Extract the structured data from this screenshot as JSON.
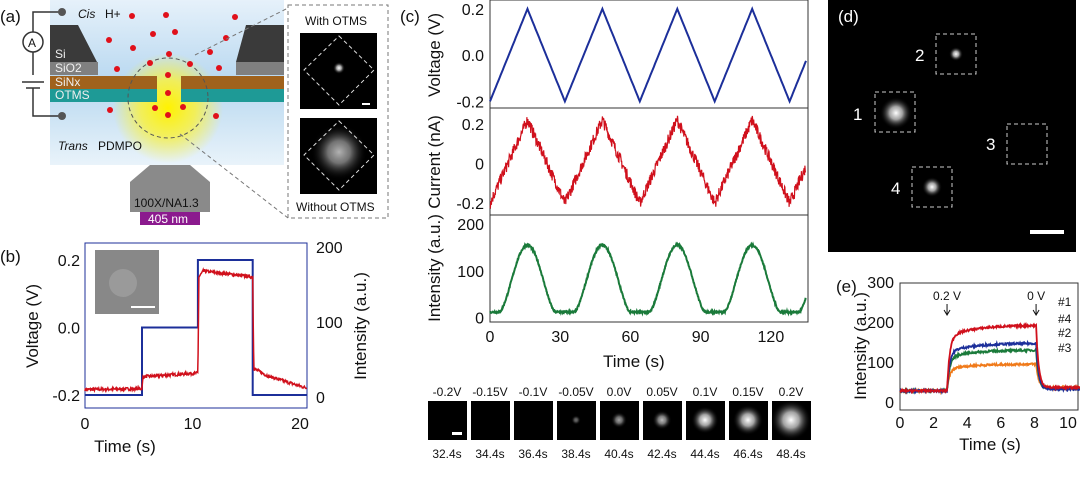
{
  "panels": {
    "a": "(a)",
    "b": "(b)",
    "c": "(c)",
    "d": "(d)",
    "e": "(e)"
  },
  "schematic": {
    "cis": "Cis",
    "hplus": "H+",
    "ammeter": "A",
    "layers": [
      "Si",
      "SiO2",
      "SiNx",
      "OTMS"
    ],
    "trans": "Trans",
    "dye": "PDMPO",
    "objective": "100X/NA1.3",
    "laser": "405 nm",
    "inset_top": "With OTMS",
    "inset_bottom": "Without OTMS",
    "colors": {
      "layer_si": "#3a3a3a",
      "layer_sio2": "#808080",
      "layer_sinx": "#a0621c",
      "layer_otms": "#1e9a96",
      "proton": "#e0101a",
      "laser": "#8b1a8e"
    }
  },
  "chart_data": [
    {
      "id": "b",
      "type": "line",
      "xlabel": "Time (s)",
      "ylabel": "Voltage (V)",
      "y2label": "Intensity (a.u.)",
      "xlim": [
        0,
        20.6
      ],
      "ylim": [
        -0.24,
        0.25
      ],
      "y2lim": [
        -10,
        210
      ],
      "xticks": [
        "0",
        "10",
        "20"
      ],
      "yticks": [
        "-0.2",
        "0.0",
        "0.2"
      ],
      "y2ticks": [
        "0",
        "100",
        "200"
      ],
      "series": [
        {
          "axis": "left",
          "color": "#1c2f9a",
          "step_times": [
            0,
            5.3,
            10.5,
            15.6,
            20.6
          ],
          "step_values": [
            -0.2,
            0.0,
            0.2,
            -0.2
          ]
        },
        {
          "axis": "right",
          "color": "#d0101c",
          "points": [
            [
              0,
              10
            ],
            [
              5.3,
              11
            ],
            [
              5.4,
              27
            ],
            [
              10.5,
              32
            ],
            [
              10.6,
              160
            ],
            [
              11,
              168
            ],
            [
              15.6,
              160
            ],
            [
              15.7,
              38
            ],
            [
              17,
              28
            ],
            [
              20.6,
              12
            ]
          ]
        }
      ]
    },
    {
      "id": "c-voltage",
      "type": "line",
      "ylabel": "Voltage (V)",
      "xlim": [
        0,
        135
      ],
      "ylim": [
        -0.22,
        0.23
      ],
      "yticks": [
        "-0.2",
        "0.0",
        "0.2"
      ],
      "series": [
        {
          "color": "#1c2f9a",
          "waveform": "triangle",
          "period_s": 32,
          "min": -0.2,
          "max": 0.2
        }
      ]
    },
    {
      "id": "c-current",
      "type": "line",
      "ylabel": "Current (nA)",
      "xlim": [
        0,
        135
      ],
      "ylim": [
        -0.25,
        0.27
      ],
      "yticks": [
        "-0.2",
        "0",
        "0.2"
      ],
      "series": [
        {
          "color": "#d0101c",
          "waveform": "triangle",
          "period_s": 32,
          "min": -0.2,
          "max": 0.22
        }
      ]
    },
    {
      "id": "c-intensity",
      "type": "line",
      "ylabel": "Intensity (a.u.)",
      "xlabel": "Time (s)",
      "xlim": [
        0,
        135
      ],
      "ylim": [
        -5,
        215
      ],
      "xticks": [
        "0",
        "30",
        "60",
        "90",
        "120"
      ],
      "yticks": [
        "0",
        "100",
        "200"
      ],
      "series": [
        {
          "color": "#1a7a3a",
          "waveform": "peaks",
          "peak_times": [
            16,
            48,
            80,
            112
          ],
          "baseline": 12,
          "peak": 155
        }
      ]
    },
    {
      "id": "e",
      "type": "line",
      "xlabel": "Time (s)",
      "ylabel": "Intensity (a.u.)",
      "xlim": [
        0,
        11
      ],
      "ylim": [
        -20,
        300
      ],
      "xticks": [
        "0",
        "2",
        "4",
        "6",
        "8",
        "10"
      ],
      "yticks": [
        "0",
        "100",
        "200",
        "300"
      ],
      "annotations": [
        "0.2 V",
        "0 V"
      ],
      "on_time": 2.8,
      "off_time": 8.1,
      "series": [
        {
          "name": "#1",
          "color": "#d0101c",
          "baseline": 28,
          "plateau": 192,
          "after": 36
        },
        {
          "name": "#4",
          "color": "#1c2f9a",
          "baseline": 28,
          "plateau": 147,
          "after": 32
        },
        {
          "name": "#2",
          "color": "#1a7a3a",
          "baseline": 28,
          "plateau": 130,
          "after": 34
        },
        {
          "name": "#3",
          "color": "#f07a1a",
          "baseline": 28,
          "plateau": 95,
          "after": 36
        }
      ]
    }
  ],
  "strip": {
    "voltages": [
      "-0.2V",
      "-0.15V",
      "-0.1V",
      "-0.05V",
      "0.0V",
      "0.05V",
      "0.1V",
      "0.15V",
      "0.2V"
    ],
    "times": [
      "32.4s",
      "34.4s",
      "36.4s",
      "38.4s",
      "40.4s",
      "42.4s",
      "44.4s",
      "46.4s",
      "48.4s"
    ],
    "brightness": [
      0,
      0,
      0,
      0.05,
      0.25,
      0.35,
      0.6,
      0.7,
      1.0
    ]
  },
  "spots": {
    "labels": [
      "1",
      "2",
      "3",
      "4"
    ]
  }
}
